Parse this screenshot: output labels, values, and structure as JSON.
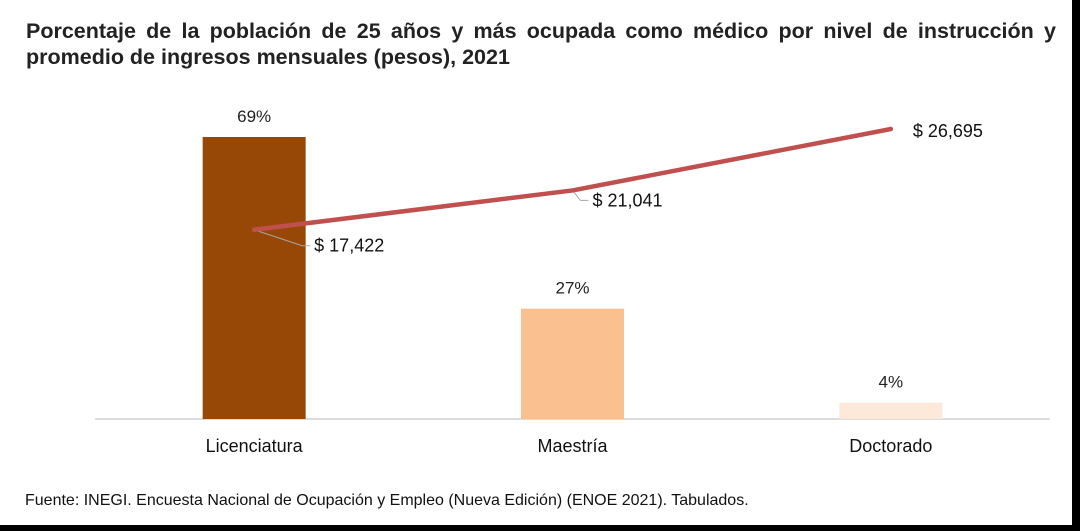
{
  "title": "Porcentaje de la población de 25 años y más ocupada como médico por nivel de instrucción y promedio de ingresos mensuales (pesos), 2021",
  "source": "Fuente: INEGI. Encuesta Nacional de Ocupación y Empleo (Nueva Edición) (ENOE 2021). Tabulados.",
  "chart_data": {
    "type": "bar",
    "title": "Porcentaje de la población de 25 años y más ocupada como médico por nivel de instrucción y promedio de ingresos mensuales (pesos), 2021",
    "categories": [
      "Licenciatura",
      "Maestría",
      "Doctorado"
    ],
    "series": [
      {
        "type": "bar",
        "values": [
          69,
          27,
          4
        ],
        "labels": [
          "69%",
          "27%",
          "4%"
        ],
        "colors": [
          "#974806",
          "#FAC090",
          "#FDE9D9"
        ]
      },
      {
        "type": "line",
        "values": [
          17422,
          21041,
          26695
        ],
        "labels": [
          "$ 17,422",
          "$ 21,041",
          "$ 26,695"
        ],
        "color": "#C0504D"
      }
    ],
    "ylim_bar": [
      0,
      100
    ],
    "ylim_line": [
      0,
      30000
    ],
    "legend": "none",
    "grid": false
  }
}
